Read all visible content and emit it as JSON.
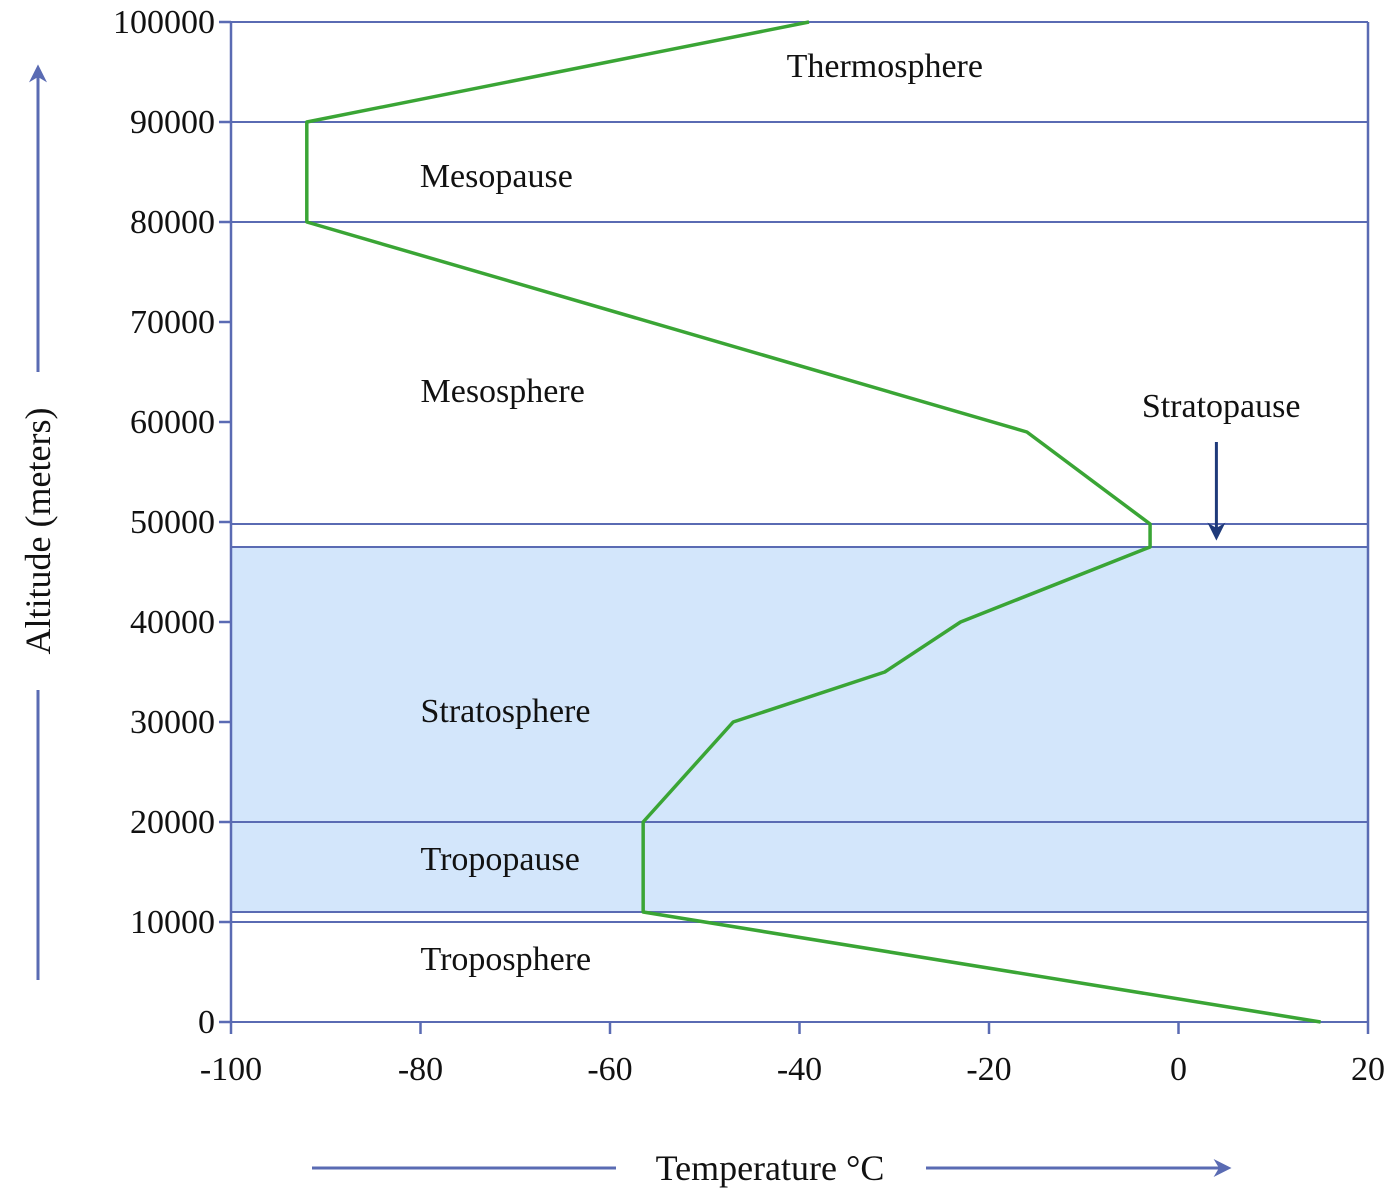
{
  "chart_data": {
    "type": "line",
    "xlabel": "Temperature °C",
    "ylabel": "Altitude (meters)",
    "xlim": [
      -100,
      20
    ],
    "ylim": [
      0,
      100000
    ],
    "x_ticks": [
      "-100",
      "-80",
      "-60",
      "-40",
      "-20",
      "0",
      "20"
    ],
    "y_ticks": [
      "0",
      "10000",
      "20000",
      "30000",
      "40000",
      "50000",
      "60000",
      "70000",
      "80000",
      "90000",
      "100000"
    ],
    "series": [
      {
        "color": "#3aa535",
        "points": [
          [
            15,
            0
          ],
          [
            -56.5,
            11000
          ],
          [
            -56.5,
            20000
          ],
          [
            -47,
            30000
          ],
          [
            -31,
            35000
          ],
          [
            -23,
            40000
          ],
          [
            -3,
            47500
          ],
          [
            -3,
            49800
          ],
          [
            -16,
            59000
          ],
          [
            -92,
            80000
          ],
          [
            -92,
            90000
          ],
          [
            -39,
            100000
          ]
        ]
      }
    ],
    "layer_boundaries": [
      0,
      10000,
      11000,
      20000,
      47500,
      49800,
      80000,
      90000,
      100000
    ],
    "shaded_band": {
      "from": 11000,
      "to": 47500,
      "color": "#d3e6fb"
    },
    "regions": [
      {
        "name": "Thermosphere",
        "x": -31,
        "y": 94500
      },
      {
        "name": "Mesopause",
        "x": -72,
        "y": 83500
      },
      {
        "name": "Mesosphere",
        "x": -80,
        "y": 62000
      },
      {
        "name": "Stratopause",
        "x": 4.5,
        "y": 60500
      },
      {
        "name": "Stratosphere",
        "x": -80,
        "y": 30000
      },
      {
        "name": "Tropopause",
        "x": -80,
        "y": 15200
      },
      {
        "name": "Troposphere",
        "x": -80,
        "y": 5200
      }
    ],
    "stratopause_arrow": {
      "x": 4,
      "y_from": 58000,
      "y_to": 48500
    },
    "grid": false,
    "colors": {
      "axis": "#5a6bb3",
      "line": "#3aa535",
      "band": "#d3e6fb",
      "arrow": "#1f3a7a"
    }
  }
}
